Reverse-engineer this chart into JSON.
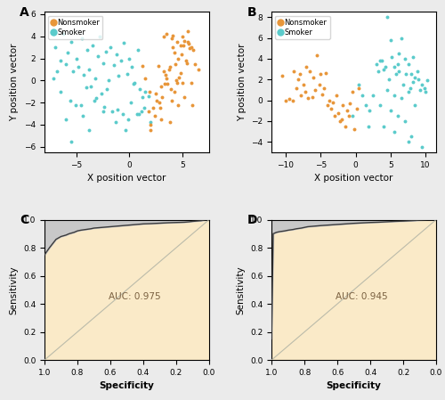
{
  "panel_A": {
    "title": "A",
    "xlabel": "X position vector",
    "ylabel": "Y position vector",
    "nonsmoker_color": "#E8963A",
    "smoker_color": "#5BCBCB",
    "xlim": [
      -8.0,
      7.5
    ],
    "ylim": [
      -6.5,
      6.2
    ],
    "xticks": [
      -5,
      0,
      5
    ],
    "nonsmoker_x": [
      3.5,
      4.0,
      4.5,
      4.8,
      5.0,
      5.2,
      5.5,
      5.8,
      6.0,
      6.2,
      4.2,
      4.6,
      5.1,
      5.3,
      3.8,
      4.3,
      4.9,
      5.4,
      5.7,
      3.2,
      3.7,
      4.1,
      4.7,
      5.6,
      3.0,
      3.4,
      3.9,
      4.4,
      5.0,
      2.5,
      2.8,
      3.1,
      3.6,
      4.2,
      4.8,
      2.2,
      2.6,
      3.3,
      4.0,
      4.6,
      1.8,
      2.4,
      3.0,
      3.8,
      5.2,
      1.5,
      2.0,
      2.9,
      3.5,
      5.9,
      1.2,
      1.9,
      2.7,
      6.5,
      4.5,
      5.8,
      3.2,
      4.1,
      5.5,
      2.0
    ],
    "nonsmoker_y": [
      4.2,
      3.8,
      3.5,
      3.2,
      4.0,
      3.6,
      4.5,
      3.0,
      2.8,
      1.5,
      2.5,
      2.0,
      3.2,
      1.8,
      1.2,
      1.5,
      2.4,
      1.6,
      2.9,
      0.8,
      1.0,
      3.0,
      0.3,
      3.3,
      -0.5,
      0.5,
      -0.8,
      0.0,
      -0.2,
      -1.2,
      -2.0,
      -1.5,
      -0.3,
      -1.0,
      0.7,
      -2.5,
      -1.8,
      -0.3,
      -1.8,
      -2.2,
      -2.8,
      -3.2,
      -3.5,
      -3.8,
      -1.5,
      0.2,
      -4.5,
      -2.5,
      0.2,
      -2.2,
      1.3,
      -1.0,
      1.3,
      1.0,
      -0.2,
      -0.2,
      4.0,
      4.1,
      3.5,
      -4.0
    ],
    "smoker_x": [
      -7.0,
      -6.8,
      -6.5,
      -6.2,
      -6.0,
      -5.8,
      -5.5,
      -5.3,
      -5.0,
      -4.8,
      -4.5,
      -4.3,
      -4.0,
      -3.8,
      -3.5,
      -3.2,
      -3.0,
      -2.8,
      -2.5,
      -2.2,
      -2.0,
      -1.8,
      -1.5,
      -1.2,
      -1.0,
      -0.8,
      -0.5,
      -0.2,
      0.0,
      0.2,
      0.5,
      0.8,
      1.0,
      1.2,
      1.5,
      -7.2,
      -6.5,
      -5.6,
      -4.6,
      -3.6,
      -2.6,
      -1.6,
      -0.6,
      0.4,
      1.4,
      -6.0,
      -5.1,
      -4.1,
      -3.1,
      -2.1,
      -1.1,
      -0.1,
      0.9,
      1.8,
      -4.4,
      -3.3,
      -2.4,
      -1.3,
      -0.4,
      0.1,
      1.1,
      -5.5,
      -3.8,
      -2.5,
      0.7,
      2.0
    ],
    "smoker_y": [
      3.0,
      0.8,
      1.8,
      4.2,
      1.5,
      2.5,
      3.5,
      0.8,
      2.0,
      1.2,
      3.8,
      0.5,
      2.8,
      1.0,
      3.2,
      0.2,
      2.2,
      4.0,
      1.6,
      2.6,
      0.0,
      3.0,
      1.4,
      2.4,
      0.4,
      1.8,
      3.4,
      0.6,
      2.0,
      1.2,
      -0.2,
      2.8,
      -0.8,
      -1.5,
      -1.0,
      0.2,
      -1.0,
      -1.8,
      -2.2,
      -0.5,
      -1.2,
      -2.8,
      -3.0,
      -0.3,
      -2.5,
      -3.5,
      -2.2,
      -0.6,
      -1.6,
      -0.8,
      -2.6,
      -3.5,
      -3.0,
      -1.4,
      -3.2,
      -1.8,
      -2.4,
      -3.8,
      -4.5,
      -2.0,
      -2.8,
      -5.5,
      -4.5,
      -2.8,
      -3.0,
      -3.8
    ]
  },
  "panel_B": {
    "title": "B",
    "xlabel": "X position vector",
    "ylabel": "Y position vector",
    "nonsmoker_color": "#E8963A",
    "smoker_color": "#5BCBCB",
    "xlim": [
      -12.0,
      11.5
    ],
    "ylim": [
      -5.0,
      8.5
    ],
    "xticks": [
      -10,
      -5,
      0,
      5,
      10
    ],
    "nonsmoker_x": [
      -10.5,
      -10.0,
      -9.5,
      -9.0,
      -8.8,
      -8.5,
      -8.2,
      -8.0,
      -7.8,
      -7.5,
      -7.2,
      -7.0,
      -6.8,
      -6.5,
      -6.2,
      -6.0,
      -5.8,
      -5.5,
      -5.2,
      -5.0,
      -4.8,
      -4.5,
      -4.2,
      -4.0,
      -3.8,
      -3.5,
      -3.2,
      -3.0,
      -2.8,
      -2.5,
      -2.2,
      -2.0,
      -1.8,
      -1.5,
      -1.2,
      -1.0,
      -0.8,
      -0.5,
      -0.2,
      0.2,
      0.5
    ],
    "nonsmoker_y": [
      2.4,
      0.0,
      0.1,
      0.0,
      2.8,
      1.2,
      2.0,
      2.5,
      0.5,
      1.5,
      0.8,
      3.2,
      0.2,
      2.8,
      0.3,
      2.2,
      1.0,
      4.3,
      1.5,
      2.5,
      0.6,
      1.2,
      2.6,
      -0.5,
      0.0,
      -0.8,
      -0.2,
      -1.5,
      0.5,
      -1.2,
      -2.0,
      -1.8,
      -0.5,
      -2.5,
      -1.0,
      -1.5,
      -0.3,
      0.8,
      -2.8,
      -0.8,
      1.2
    ],
    "smoker_x": [
      3.0,
      3.5,
      4.0,
      4.5,
      5.0,
      5.5,
      6.0,
      6.5,
      7.0,
      7.5,
      8.0,
      8.5,
      9.0,
      9.5,
      10.0,
      3.2,
      4.2,
      5.2,
      6.2,
      7.2,
      8.2,
      9.2,
      3.8,
      4.8,
      5.8,
      6.8,
      7.8,
      8.8,
      4.5,
      5.5,
      6.5,
      7.5,
      8.5,
      9.8,
      5.0,
      7.0,
      9.5,
      3.5,
      6.0,
      8.0,
      4.0,
      5.5,
      7.5,
      0.5,
      1.0,
      1.5,
      2.0,
      2.5,
      -0.5,
      1.8,
      6.2,
      8.2,
      10.2
    ],
    "smoker_y": [
      3.5,
      3.8,
      3.0,
      8.0,
      5.8,
      3.2,
      3.5,
      6.0,
      4.0,
      3.5,
      2.5,
      2.2,
      2.0,
      1.5,
      0.8,
      2.8,
      3.2,
      4.2,
      2.8,
      2.5,
      1.8,
      1.0,
      3.8,
      2.0,
      2.5,
      1.5,
      1.2,
      2.8,
      1.0,
      0.5,
      0.2,
      0.8,
      -0.5,
      1.2,
      -1.0,
      -2.0,
      -4.5,
      -0.5,
      -1.5,
      -3.5,
      -2.5,
      -3.0,
      -4.0,
      1.5,
      0.5,
      -0.5,
      -1.0,
      0.5,
      -1.5,
      -2.5,
      4.5,
      4.2,
      1.9
    ]
  },
  "panel_C": {
    "title": "C",
    "auc": "AUC: 0.975",
    "xlabel": "Specificity",
    "ylabel": "Sensitivity",
    "fill_color": "#FAEAC8",
    "grey_color": "#C8C8C8",
    "line_color": "#3A3A3A",
    "diag_color": "#BBBBAA",
    "roc_spec": [
      1.0,
      0.97,
      0.95,
      0.93,
      0.9,
      0.87,
      0.85,
      0.82,
      0.8,
      0.78,
      0.75,
      0.72,
      0.7,
      0.65,
      0.6,
      0.55,
      0.5,
      0.45,
      0.4,
      0.35,
      0.3,
      0.25,
      0.2,
      0.15,
      0.12,
      0.1,
      0.08,
      0.05,
      0.03,
      0.02,
      0.01,
      0.0
    ],
    "roc_sens": [
      0.75,
      0.8,
      0.83,
      0.86,
      0.88,
      0.89,
      0.9,
      0.91,
      0.92,
      0.925,
      0.93,
      0.935,
      0.94,
      0.945,
      0.95,
      0.955,
      0.96,
      0.965,
      0.97,
      0.972,
      0.975,
      0.978,
      0.98,
      0.982,
      0.985,
      0.988,
      0.99,
      0.993,
      0.997,
      1.0,
      1.0,
      1.0
    ]
  },
  "panel_D": {
    "title": "D",
    "auc": "AUC: 0.945",
    "xlabel": "Specificity",
    "ylabel": "Sensitivity",
    "fill_color": "#FAEAC8",
    "grey_color": "#C8C8C8",
    "line_color": "#3A3A3A",
    "diag_color": "#BBBBAA",
    "roc_spec": [
      1.0,
      0.99,
      0.97,
      0.95,
      0.92,
      0.9,
      0.87,
      0.85,
      0.82,
      0.8,
      0.78,
      0.75,
      0.72,
      0.7,
      0.65,
      0.6,
      0.55,
      0.5,
      0.45,
      0.4,
      0.35,
      0.3,
      0.25,
      0.2,
      0.15,
      0.12,
      0.1,
      0.08,
      0.05,
      0.03,
      0.01,
      0.0
    ],
    "roc_sens": [
      0.15,
      0.9,
      0.91,
      0.915,
      0.92,
      0.925,
      0.93,
      0.935,
      0.94,
      0.945,
      0.95,
      0.953,
      0.956,
      0.958,
      0.962,
      0.966,
      0.97,
      0.974,
      0.977,
      0.98,
      0.982,
      0.985,
      0.988,
      0.99,
      0.993,
      0.995,
      0.997,
      0.998,
      1.0,
      1.0,
      1.0,
      1.0
    ]
  },
  "bg_color": "#EBEBEB",
  "panel_bg": "#FFFFFF",
  "label_fontsize": 7.5,
  "tick_fontsize": 6.5,
  "title_fontsize": 10,
  "marker_size": 8,
  "nonsmoker_color": "#E8963A",
  "smoker_color": "#5BCBCB"
}
